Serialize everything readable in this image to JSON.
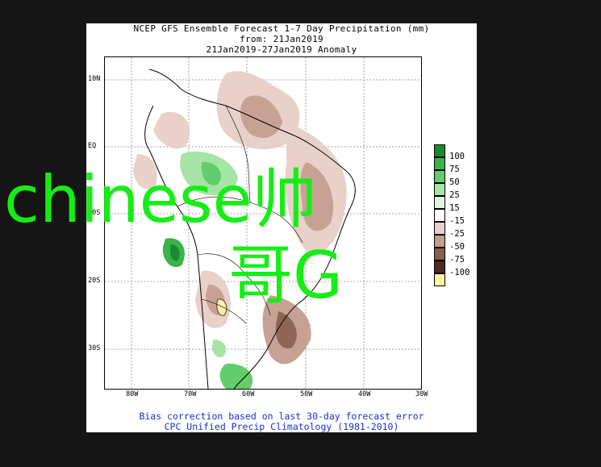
{
  "header": {
    "line1": "NCEP GFS Ensemble Forecast 1-7 Day Precipitation (mm)",
    "line2": "from: 21Jan2019",
    "line3": "21Jan2019-27Jan2019 Anomaly"
  },
  "axes": {
    "lat_labels": [
      "10N",
      "EQ",
      "10S",
      "20S",
      "30S"
    ],
    "lon_labels": [
      "80W",
      "70W",
      "60W",
      "50W",
      "40W",
      "30W"
    ]
  },
  "legend": {
    "labels": [
      "100",
      "75",
      "50",
      "25",
      "15",
      "-15",
      "-25",
      "-50",
      "-75",
      "-100"
    ],
    "colors": [
      "#1a8a2e",
      "#39b34a",
      "#63cd6e",
      "#a6e4a6",
      "#e2f7e2",
      "#ffffff",
      "#e8cfc8",
      "#c59e8f",
      "#8a5e4c",
      "#4e2b20",
      "#fff2a0"
    ]
  },
  "footer": {
    "line1": "Bias correction based on last 30-day forecast error",
    "line2": "CPC Unified Precip Climatology (1981-2010)"
  },
  "watermark": {
    "line1": "chinese帅",
    "line2": "哥G",
    "color": "#15ee15"
  }
}
